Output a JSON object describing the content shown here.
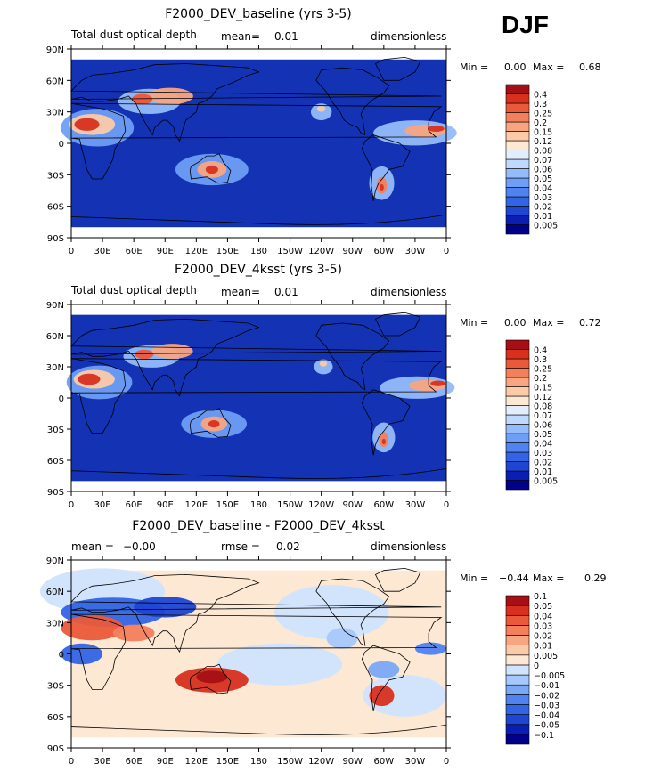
{
  "season_label": "DJF",
  "colors": {
    "ocean": "#1432b4",
    "coast": "#000000",
    "abs_levels": [
      "#00008b",
      "#0a1eb4",
      "#1e46d2",
      "#3264e6",
      "#5082f0",
      "#6e9ef5",
      "#94bcfa",
      "#c0d8fb",
      "#e2eefd",
      "#fde8d4",
      "#fbcaa8",
      "#f8a582",
      "#f47f5c",
      "#ea5a3a",
      "#d7301f",
      "#a50f15"
    ],
    "diff_levels": [
      "#00008b",
      "#0a1eb4",
      "#1e46d2",
      "#3264e6",
      "#5082f0",
      "#7aa8f5",
      "#a6c8fa",
      "#d2e4fc",
      "#fde8d4",
      "#fbcaa8",
      "#f8a582",
      "#f47f5c",
      "#ea5a3a",
      "#d7301f",
      "#a50f15"
    ]
  },
  "chart_data": [
    {
      "type": "heatmap",
      "title": "F2000_DEV_baseline (yrs 3-5)",
      "left_string": "Total dust optical depth",
      "mean_label": "mean=",
      "mean_value": "0.01",
      "units": "dimensionless",
      "min_label": "Min =",
      "min_value": "0.00",
      "max_label": "Max =",
      "max_value": "0.68",
      "lat_ticks": [
        "90N",
        "60N",
        "30N",
        "0",
        "30S",
        "60S",
        "90S"
      ],
      "lon_ticks": [
        "0",
        "30E",
        "60E",
        "90E",
        "120E",
        "150E",
        "180",
        "150W",
        "120W",
        "90W",
        "60W",
        "30W",
        "0"
      ],
      "colorbar_labels": [
        "0.005",
        "0.01",
        "0.02",
        "0.03",
        "0.04",
        "0.05",
        "0.06",
        "0.07",
        "0.08",
        "0.12",
        "0.15",
        "0.2",
        "0.25",
        "0.3",
        "0.4"
      ]
    },
    {
      "type": "heatmap",
      "title": "F2000_DEV_4ksst (yrs 3-5)",
      "left_string": "Total dust optical depth",
      "mean_label": "mean=",
      "mean_value": "0.01",
      "units": "dimensionless",
      "min_label": "Min =",
      "min_value": "0.00",
      "max_label": "Max =",
      "max_value": "0.72",
      "lat_ticks": [
        "90N",
        "60N",
        "30N",
        "0",
        "30S",
        "60S",
        "90S"
      ],
      "lon_ticks": [
        "0",
        "30E",
        "60E",
        "90E",
        "120E",
        "150E",
        "180",
        "150W",
        "120W",
        "90W",
        "60W",
        "30W",
        "0"
      ],
      "colorbar_labels": [
        "0.005",
        "0.01",
        "0.02",
        "0.03",
        "0.04",
        "0.05",
        "0.06",
        "0.07",
        "0.08",
        "0.12",
        "0.15",
        "0.2",
        "0.25",
        "0.3",
        "0.4"
      ]
    },
    {
      "type": "heatmap",
      "title": "F2000_DEV_baseline - F2000_DEV_4ksst",
      "mean_label": "mean =",
      "mean_value": "−0.00",
      "rmse_label": "rmse =",
      "rmse_value": "0.02",
      "units": "dimensionless",
      "min_label": "Min =",
      "min_value": "−0.44",
      "max_label": "Max =",
      "max_value": "0.29",
      "lat_ticks": [
        "90N",
        "60N",
        "30N",
        "0",
        "30S",
        "60S",
        "90S"
      ],
      "lon_ticks": [
        "0",
        "30E",
        "60E",
        "90E",
        "120E",
        "150E",
        "180",
        "150W",
        "120W",
        "90W",
        "60W",
        "30W",
        "0"
      ],
      "colorbar_labels": [
        "−0.1",
        "−0.05",
        "−0.04",
        "−0.03",
        "−0.02",
        "−0.01",
        "−0.005",
        "0",
        "0.005",
        "0.01",
        "0.02",
        "0.03",
        "0.04",
        "0.05",
        "0.1"
      ]
    }
  ]
}
